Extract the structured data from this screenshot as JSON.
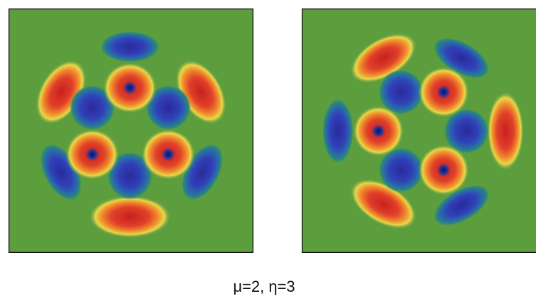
{
  "caption": "μ=2, η=3"
}
